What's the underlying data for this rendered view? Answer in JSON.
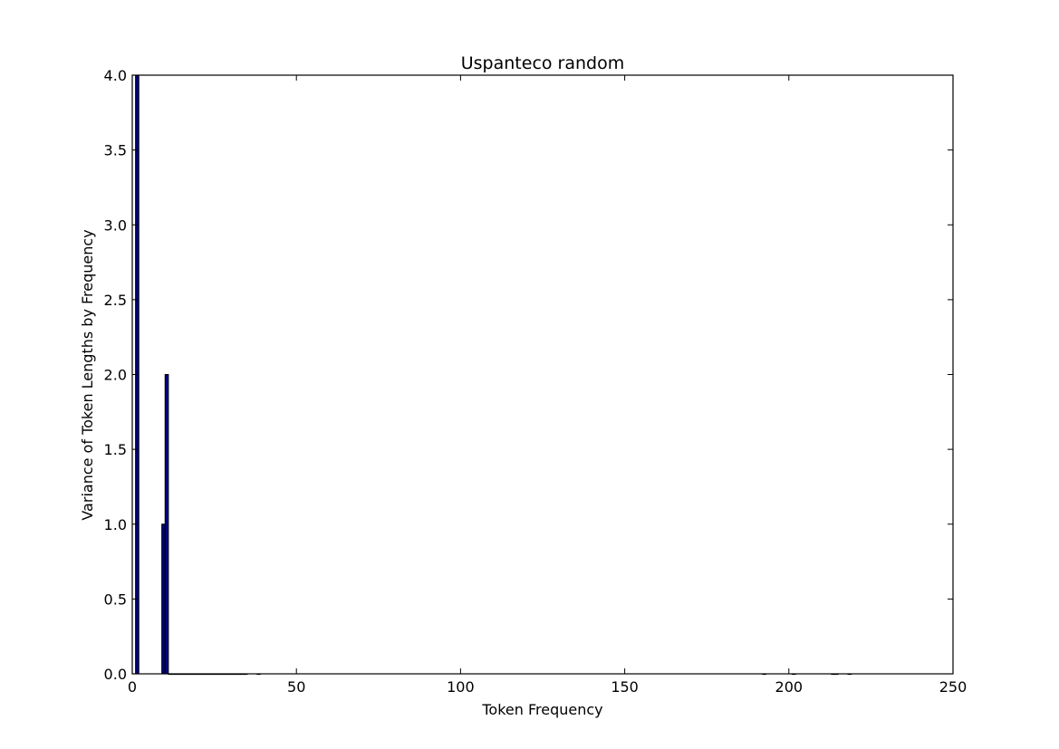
{
  "chart_data": {
    "type": "bar",
    "title": "Uspanteco random",
    "xlabel": "Token Frequency",
    "ylabel": "Variance of Token Lengths by Frequency",
    "xlim": [
      0,
      250
    ],
    "ylim": [
      0,
      4.0
    ],
    "xticks": [
      0,
      50,
      100,
      150,
      200,
      250
    ],
    "xtick_labels": [
      "0",
      "50",
      "100",
      "150",
      "200",
      "250"
    ],
    "yticks": [
      0.0,
      0.5,
      1.0,
      1.5,
      2.0,
      2.5,
      3.0,
      3.5,
      4.0
    ],
    "ytick_labels": [
      "0.0",
      "0.5",
      "1.0",
      "1.5",
      "2.0",
      "2.5",
      "3.0",
      "3.5",
      "4.0"
    ],
    "bar_color": "#00007f",
    "bar_edge_color": "#000000",
    "bars": [
      {
        "x": 1,
        "value": 4.0
      },
      {
        "x": 9,
        "value": 1.0
      },
      {
        "x": 10,
        "value": 2.0
      },
      {
        "x": 11,
        "value": 0
      },
      {
        "x": 12,
        "value": 0
      },
      {
        "x": 13,
        "value": 0
      },
      {
        "x": 14,
        "value": 0
      },
      {
        "x": 15,
        "value": 0
      },
      {
        "x": 16,
        "value": 0
      },
      {
        "x": 17,
        "value": 0
      },
      {
        "x": 18,
        "value": 0
      },
      {
        "x": 19,
        "value": 0
      },
      {
        "x": 20,
        "value": 0
      },
      {
        "x": 21,
        "value": 0
      },
      {
        "x": 22,
        "value": 0
      },
      {
        "x": 23,
        "value": 0
      },
      {
        "x": 24,
        "value": 0
      },
      {
        "x": 25,
        "value": 0
      },
      {
        "x": 26,
        "value": 0
      },
      {
        "x": 27,
        "value": 0
      },
      {
        "x": 28,
        "value": 0
      },
      {
        "x": 29,
        "value": 0
      },
      {
        "x": 30,
        "value": 0
      },
      {
        "x": 31,
        "value": 0
      },
      {
        "x": 32,
        "value": 0
      },
      {
        "x": 33,
        "value": 0
      },
      {
        "x": 34,
        "value": 0
      },
      {
        "x": 38,
        "value": 0
      },
      {
        "x": 192,
        "value": 0
      },
      {
        "x": 201,
        "value": 0
      },
      {
        "x": 213,
        "value": 0
      },
      {
        "x": 214,
        "value": 0
      },
      {
        "x": 218,
        "value": 0
      }
    ]
  }
}
